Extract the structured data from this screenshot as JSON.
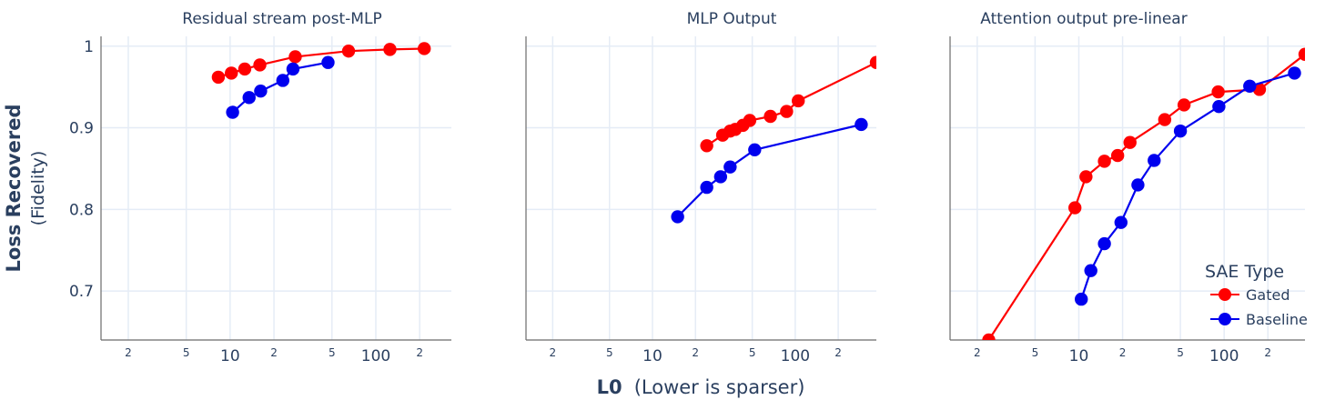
{
  "figure": {
    "ylabel_main": "Loss Recovered",
    "ylabel_sub": "(Fidelity)",
    "xlabel_main": "L0",
    "xlabel_sub": "(Lower is sparser)"
  },
  "legend": {
    "title": "SAE Type",
    "entries": [
      {
        "name": "Gated",
        "color": "#ff0000"
      },
      {
        "name": "Baseline",
        "color": "#0000ee"
      }
    ]
  },
  "chart_data": [
    {
      "type": "line",
      "title": "Residual stream post-MLP",
      "x_scale": "log",
      "xlim": [
        1.3,
        330
      ],
      "ylim": [
        0.64,
        1.012
      ],
      "y_ticks": [
        "1",
        "0.9",
        "0.8",
        "0.7"
      ],
      "x_ticks": [
        "2",
        "5",
        "10",
        "2",
        "5",
        "100",
        "2"
      ],
      "series": [
        {
          "name": "Gated",
          "color": "#ff0000",
          "x": [
            8.3,
            10.2,
            12.6,
            16,
            28,
            65,
            125,
            215
          ],
          "y": [
            0.962,
            0.967,
            0.972,
            0.977,
            0.987,
            0.994,
            0.996,
            0.997
          ]
        },
        {
          "name": "Baseline",
          "color": "#0000ee",
          "x": [
            10.4,
            13.5,
            16.2,
            23,
            27,
            47
          ],
          "y": [
            0.919,
            0.937,
            0.945,
            0.958,
            0.972,
            0.98
          ]
        }
      ]
    },
    {
      "type": "line",
      "title": "MLP Output",
      "x_scale": "log",
      "xlim": [
        1.3,
        370
      ],
      "ylim": [
        0.64,
        1.012
      ],
      "y_ticks": [],
      "x_ticks": [
        "2",
        "5",
        "10",
        "2",
        "5",
        "100",
        "2"
      ],
      "series": [
        {
          "name": "Gated",
          "color": "#ff0000",
          "x": [
            24,
            31,
            35,
            38,
            43,
            48,
            67,
            87,
            105,
            370
          ],
          "y": [
            0.878,
            0.891,
            0.896,
            0.898,
            0.903,
            0.909,
            0.914,
            0.92,
            0.933,
            0.98
          ]
        },
        {
          "name": "Baseline",
          "color": "#0000ee",
          "x": [
            15,
            24,
            30,
            35,
            52,
            290
          ],
          "y": [
            0.791,
            0.827,
            0.84,
            0.852,
            0.873,
            0.904
          ]
        }
      ]
    },
    {
      "type": "line",
      "title": "Attention output pre-linear",
      "x_scale": "log",
      "xlim": [
        1.3,
        360
      ],
      "ylim": [
        0.64,
        1.012
      ],
      "y_ticks": [],
      "x_ticks": [
        "2",
        "5",
        "10",
        "2",
        "5",
        "100",
        "2"
      ],
      "series": [
        {
          "name": "Gated",
          "color": "#ff0000",
          "x": [
            2.4,
            9.4,
            11.2,
            15,
            18.5,
            22.5,
            39,
            53,
            91,
            175,
            360
          ],
          "y": [
            0.64,
            0.802,
            0.84,
            0.859,
            0.866,
            0.882,
            0.91,
            0.928,
            0.944,
            0.947,
            0.99
          ]
        },
        {
          "name": "Baseline",
          "color": "#0000ee",
          "x": [
            10.4,
            12.1,
            15,
            19.5,
            25.5,
            33,
            50,
            92,
            150,
            305
          ],
          "y": [
            0.69,
            0.725,
            0.758,
            0.784,
            0.83,
            0.86,
            0.896,
            0.926,
            0.951,
            0.967
          ]
        }
      ]
    }
  ]
}
